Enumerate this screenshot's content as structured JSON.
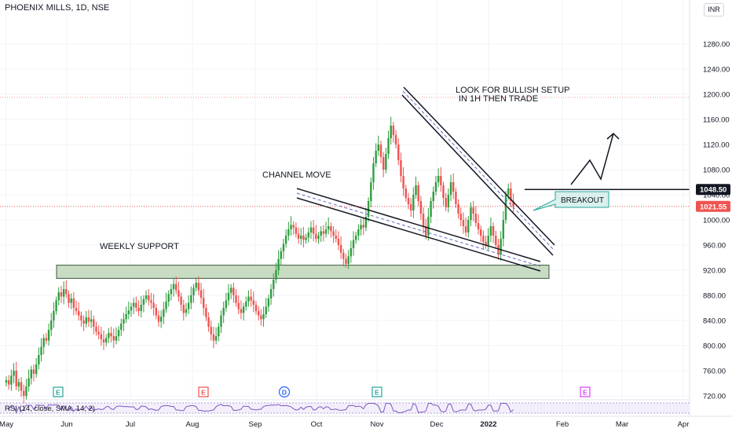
{
  "header": {
    "title": "PHOENIX MILLS, 1D, NSE",
    "currency": "INR"
  },
  "colors": {
    "up": "#26a69a",
    "down": "#ef5350",
    "up_candle": "#2e9e3f",
    "zone_fill": "#c8dcc4",
    "zone_border": "#3c5a3c",
    "callout_fill": "#d9f0ec",
    "callout_border": "#26a69a",
    "rsi_line": "#7e57c2"
  },
  "chart_data": {
    "type": "candlestick",
    "title": "PHOENIX MILLS, 1D, NSE",
    "ylim": [
      700,
      1320
    ],
    "y_ticks": [
      720,
      760,
      800,
      840,
      880,
      920,
      960,
      1000,
      1040,
      1080,
      1120,
      1160,
      1200,
      1240,
      1280
    ],
    "y_tick_labels": [
      "720.00",
      "760.00",
      "800.00",
      "840.00",
      "880.00",
      "920.00",
      "960.00",
      "1000.00",
      "1040.00",
      "1080.00",
      "1120.00",
      "1160.00",
      "1200.00",
      "1240.00",
      "1280.00"
    ],
    "x_labels": [
      "May",
      "Jun",
      "Jul",
      "Aug",
      "Sep",
      "Oct",
      "Nov",
      "Dec",
      "2022",
      "Feb",
      "Mar",
      "Apr"
    ],
    "price_label_current": "1021.55",
    "price_label_level": "1048.50",
    "current_price": 1021.55,
    "breakout_level": 1048.5,
    "grid": true,
    "closes": [
      745,
      738,
      752,
      760,
      735,
      742,
      728,
      720,
      735,
      748,
      762,
      755,
      770,
      785,
      798,
      812,
      808,
      825,
      840,
      855,
      872,
      885,
      878,
      890,
      882,
      868,
      875,
      860,
      855,
      848,
      840,
      835,
      845,
      838,
      842,
      830,
      822,
      818,
      810,
      805,
      812,
      820,
      815,
      808,
      815,
      825,
      835,
      842,
      850,
      856,
      862,
      868,
      860,
      855,
      865,
      874,
      880,
      872,
      868,
      860,
      848,
      838,
      846,
      858,
      870,
      882,
      890,
      898,
      888,
      878,
      865,
      852,
      858,
      868,
      880,
      892,
      900,
      888,
      876,
      860,
      845,
      830,
      818,
      808,
      815,
      830,
      848,
      860,
      872,
      884,
      892,
      880,
      868,
      858,
      852,
      862,
      870,
      878,
      872,
      865,
      855,
      848,
      842,
      850,
      862,
      875,
      890,
      905,
      920,
      938,
      950,
      962,
      975,
      985,
      992,
      988,
      978,
      970,
      975,
      968,
      972,
      980,
      988,
      978,
      970,
      975,
      982,
      978,
      985,
      990,
      982,
      975,
      970,
      960,
      948,
      938,
      930,
      942,
      955,
      968,
      975,
      985,
      992,
      988,
      1005,
      1030,
      1060,
      1090,
      1110,
      1120,
      1100,
      1080,
      1105,
      1130,
      1150,
      1135,
      1120,
      1095,
      1070,
      1050,
      1035,
      1025,
      1015,
      1040,
      1055,
      1030,
      1010,
      990,
      975,
      1005,
      1030,
      1045,
      1060,
      1070,
      1055,
      1035,
      1020,
      1040,
      1060,
      1045,
      1025,
      1010,
      1000,
      990,
      980,
      1000,
      1020,
      1010,
      995,
      985,
      975,
      965,
      960,
      975,
      990,
      975,
      960,
      945,
      970,
      1000,
      1040,
      1050,
      1030,
      1021.55
    ],
    "series": [
      {
        "name": "RSI (14, close, SMA, 14, 2)",
        "type": "line"
      }
    ],
    "events": [
      {
        "label": "E",
        "month": "Jun",
        "color": "#26a69a"
      },
      {
        "label": "E",
        "month": "Aug",
        "color": "#ef5350"
      },
      {
        "label": "D",
        "month": "Sep",
        "color": "#2962ff"
      },
      {
        "label": "E",
        "month": "Nov",
        "color": "#26a69a"
      },
      {
        "label": "E",
        "month": "Feb",
        "color": "#e040fb"
      }
    ],
    "annotations": [
      {
        "text": "WEEKLY SUPPORT"
      },
      {
        "text": "CHANNEL MOVE"
      },
      {
        "text_line1": "LOOK FOR BULLISH SETUP",
        "text_line2": "IN 1H THEN TRADE"
      },
      {
        "text": "BREAKOUT"
      }
    ],
    "support_zone": [
      907,
      928
    ],
    "rsi_label": "RSI (14, close, SMA, 14, 2)"
  }
}
